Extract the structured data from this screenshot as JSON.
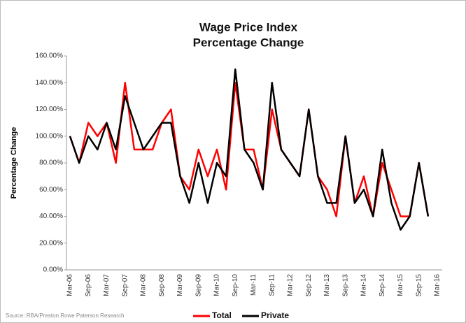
{
  "chart_data": {
    "type": "line",
    "title": "Wage Price Index",
    "subtitle": "Percentage Change",
    "y_label": "Percentage Change",
    "source": "Source: RBA/Preston Rowe Paterson Research",
    "categories": [
      "Mar-06",
      null,
      "Sep-06",
      null,
      "Mar-07",
      null,
      "Sep-07",
      null,
      "Mar-08",
      null,
      "Sep-08",
      null,
      "Mar-09",
      null,
      "Sep-09",
      null,
      "Mar-10",
      null,
      "Sep-10",
      null,
      "Mar-11",
      null,
      "Sep-11",
      null,
      "Mar-12",
      null,
      "Sep-12",
      null,
      "Mar-13",
      null,
      "Sep-13",
      null,
      "Mar-14",
      null,
      "Sep-14",
      null,
      "Mar-15",
      null,
      "Sep-15",
      null,
      "Mar-16"
    ],
    "series": [
      {
        "name": "Total",
        "color": "#ff0000",
        "values": [
          100,
          80,
          110,
          100,
          110,
          80,
          140,
          90,
          90,
          90,
          110,
          120,
          70,
          60,
          90,
          70,
          90,
          60,
          140,
          90,
          90,
          60,
          120,
          90,
          80,
          70,
          120,
          70,
          60,
          40,
          100,
          50,
          70,
          40,
          80,
          60,
          40,
          40,
          80,
          40,
          null
        ]
      },
      {
        "name": "Private",
        "color": "#000000",
        "values": [
          100,
          80,
          100,
          90,
          110,
          90,
          130,
          110,
          90,
          100,
          110,
          110,
          70,
          50,
          80,
          50,
          80,
          70,
          150,
          90,
          80,
          60,
          140,
          90,
          80,
          70,
          120,
          70,
          50,
          50,
          100,
          50,
          60,
          40,
          90,
          50,
          30,
          40,
          80,
          40,
          null
        ]
      }
    ],
    "ylim": [
      0,
      160
    ],
    "yticks": [
      {
        "value": 0,
        "label": "0.00%"
      },
      {
        "value": 20,
        "label": "20.00%"
      },
      {
        "value": 40,
        "label": "40.00%"
      },
      {
        "value": 60,
        "label": "60.00%"
      },
      {
        "value": 80,
        "label": "80.00%"
      },
      {
        "value": 100,
        "label": "100.00%"
      },
      {
        "value": 120,
        "label": "120.00%"
      },
      {
        "value": 140,
        "label": "140.00%"
      },
      {
        "value": 160,
        "label": "160.00%"
      }
    ],
    "grid": false,
    "legend": "bottom"
  }
}
